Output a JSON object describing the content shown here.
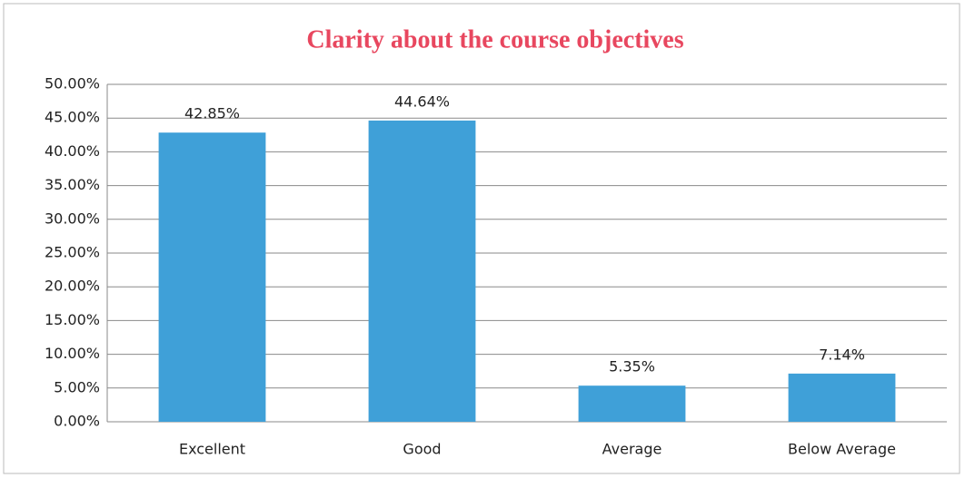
{
  "chart_data": {
    "type": "bar",
    "title": "Clarity about the course objectives",
    "categories": [
      "Excellent",
      "Good",
      "Average",
      "Below Average"
    ],
    "values": [
      42.85,
      44.64,
      5.35,
      7.14
    ],
    "value_labels": [
      "42.85%",
      "44.64%",
      "5.35%",
      "7.14%"
    ],
    "color": "#3fa0d8",
    "ylim": [
      0,
      50
    ],
    "yticks": [
      {
        "value": 0,
        "label": "0.00%"
      },
      {
        "value": 5,
        "label": "5.00%"
      },
      {
        "value": 10,
        "label": "10.00%"
      },
      {
        "value": 15,
        "label": "15.00%"
      },
      {
        "value": 20,
        "label": "20.00%"
      },
      {
        "value": 25,
        "label": "25.00%"
      },
      {
        "value": 30,
        "label": "30.00%"
      },
      {
        "value": 35,
        "label": "35.00%"
      },
      {
        "value": 40,
        "label": "40.00%"
      },
      {
        "value": 45,
        "label": "45.00%"
      },
      {
        "value": 50,
        "label": "50.00%"
      }
    ],
    "grid": true
  }
}
